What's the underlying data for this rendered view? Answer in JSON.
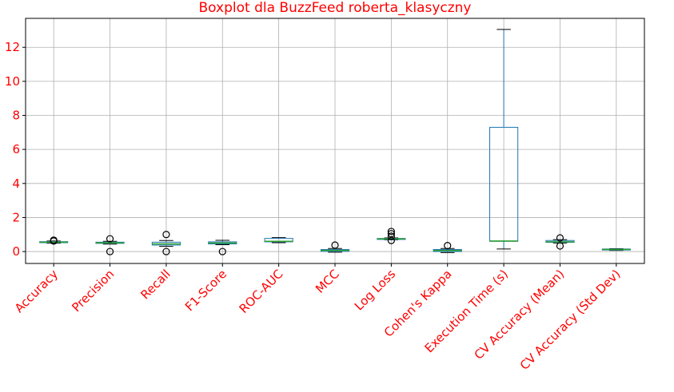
{
  "chart_data": {
    "type": "boxplot",
    "title": "Boxplot dla BuzzFeed roberta_klasyczny",
    "xlabel": "",
    "ylabel": "",
    "ylim": [
      -0.7,
      13.7
    ],
    "yticks": [
      0,
      2,
      4,
      6,
      8,
      10,
      12
    ],
    "grid": true,
    "colors": {
      "box": "#1f77b4",
      "median": "#2ca02c",
      "whisker": "#1f77b4",
      "cap": "#000000",
      "flier": "#000000",
      "text": "#ff0000"
    },
    "categories": [
      "Accuracy",
      "Precision",
      "Recall",
      "F1-Score",
      "ROC-AUC",
      "MCC",
      "Log Loss",
      "Cohen's Kappa",
      "Execution Time (s)",
      "CV Accuracy (Mean)",
      "CV Accuracy (Std Dev)"
    ],
    "boxes": [
      {
        "whislo": 0.49,
        "q1": 0.52,
        "med": 0.55,
        "q3": 0.58,
        "whishi": 0.62,
        "fliers": [
          0.67,
          0.62
        ]
      },
      {
        "whislo": 0.44,
        "q1": 0.48,
        "med": 0.51,
        "q3": 0.55,
        "whishi": 0.6,
        "fliers": [
          0.0,
          0.75
        ]
      },
      {
        "whislo": 0.3,
        "q1": 0.38,
        "med": 0.45,
        "q3": 0.55,
        "whishi": 0.65,
        "fliers": [
          0.0,
          1.0
        ]
      },
      {
        "whislo": 0.4,
        "q1": 0.45,
        "med": 0.5,
        "q3": 0.57,
        "whishi": 0.66,
        "fliers": [
          0.0
        ]
      },
      {
        "whislo": 0.52,
        "q1": 0.57,
        "med": 0.6,
        "q3": 0.77,
        "whishi": 0.82,
        "fliers": []
      },
      {
        "whislo": -0.04,
        "q1": 0.01,
        "med": 0.07,
        "q3": 0.12,
        "whishi": 0.18,
        "fliers": [
          0.38
        ]
      },
      {
        "whislo": 0.69,
        "q1": 0.71,
        "med": 0.74,
        "q3": 0.77,
        "whishi": 0.8,
        "fliers": [
          0.65,
          0.9,
          1.05,
          1.18
        ]
      },
      {
        "whislo": -0.06,
        "q1": 0.0,
        "med": 0.06,
        "q3": 0.12,
        "whishi": 0.18,
        "fliers": [
          0.35
        ]
      },
      {
        "whislo": 0.15,
        "q1": 0.6,
        "med": 0.62,
        "q3": 7.3,
        "whishi": 13.05,
        "fliers": []
      },
      {
        "whislo": 0.5,
        "q1": 0.54,
        "med": 0.57,
        "q3": 0.65,
        "whishi": 0.7,
        "fliers": [
          0.33,
          0.8
        ]
      },
      {
        "whislo": 0.07,
        "q1": 0.09,
        "med": 0.12,
        "q3": 0.15,
        "whishi": 0.17,
        "fliers": []
      }
    ]
  }
}
